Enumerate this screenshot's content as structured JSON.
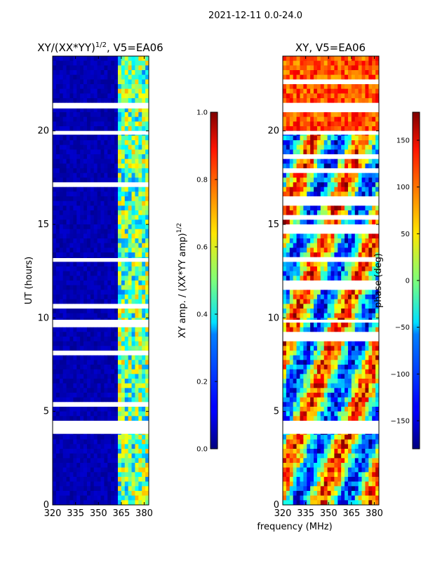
{
  "suptitle": "2021-12-11 0.0-24.0",
  "common_xlabel": "frequency (MHz)",
  "colors": {
    "cmap": "jet",
    "axis": "#000000",
    "gap": "#ffffff"
  },
  "chart_data": [
    {
      "type": "heatmap",
      "title_main": "XY/(XX*YY)",
      "title_sup": "1/2",
      "title_tail": ", V5=EA06",
      "xlabel": "",
      "ylabel": "UT (hours)",
      "xlim": [
        320,
        383
      ],
      "ylim": [
        0,
        24
      ],
      "xticks": [
        320,
        335,
        350,
        365,
        380
      ],
      "yticks": [
        0,
        5,
        10,
        15,
        20
      ],
      "description": "amplitude ratio, mostly low (dark blue) below 362 MHz, bright bands 362-383 MHz",
      "gap_hours": [
        [
          3.8,
          4.5
        ],
        [
          9.75,
          9.9
        ],
        [
          13.0,
          13.2
        ],
        [
          19.8,
          20.0
        ],
        [
          21.2,
          21.4
        ]
      ],
      "colorbar": {
        "label_main": "XY amp. / (XX*YY amp)",
        "label_sup": "1/2",
        "range": [
          0.0,
          1.0
        ],
        "ticks": [
          "0.0",
          "0.2",
          "0.4",
          "0.6",
          "0.8",
          "1.0"
        ]
      }
    },
    {
      "type": "heatmap",
      "title_main": "XY, V5=EA06",
      "xlabel": "frequency (MHz)",
      "ylabel": "",
      "xlim": [
        320,
        383
      ],
      "ylim": [
        0,
        24
      ],
      "xticks": [
        320,
        335,
        350,
        365,
        380
      ],
      "yticks": [
        0,
        5,
        10,
        15,
        20
      ],
      "description": "cross-hand phase, mixed colors across full band",
      "gap_hours": [
        [
          3.8,
          4.5
        ],
        [
          9.75,
          9.9
        ],
        [
          13.0,
          13.2
        ],
        [
          19.8,
          20.0
        ],
        [
          21.2,
          21.4
        ]
      ],
      "colorbar": {
        "label_main": "phase (deg)",
        "range": [
          -180,
          180
        ],
        "ticks": [
          "−150",
          "−100",
          "−50",
          "0",
          "50",
          "100",
          "150"
        ]
      }
    }
  ]
}
